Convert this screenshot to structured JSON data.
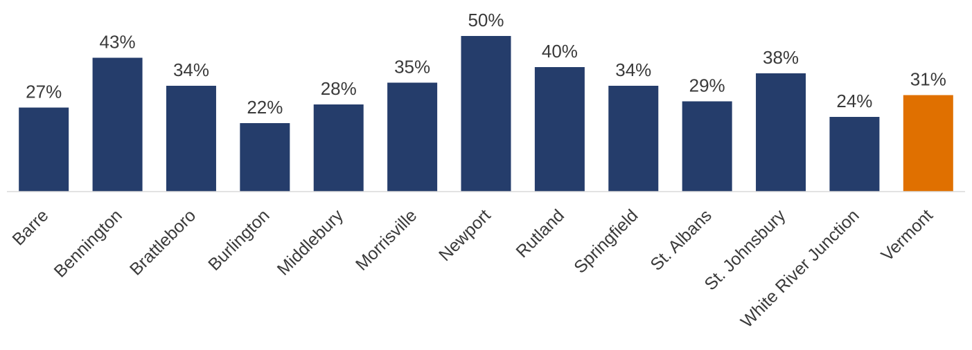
{
  "chart_data": {
    "type": "bar",
    "title": "",
    "xlabel": "",
    "ylabel": "",
    "ylim": [
      0,
      50
    ],
    "grid": false,
    "legend": "none",
    "categories": [
      "Barre",
      "Bennington",
      "Brattleboro",
      "Burlington",
      "Middlebury",
      "Morrisville",
      "Newport",
      "Rutland",
      "Springfield",
      "St. Albans",
      "St. Johnsbury",
      "White River Junction",
      "Vermont"
    ],
    "values": [
      27,
      43,
      34,
      22,
      28,
      35,
      50,
      40,
      34,
      29,
      38,
      24,
      31
    ],
    "labels": [
      "27%",
      "43%",
      "34%",
      "22%",
      "28%",
      "35%",
      "50%",
      "40%",
      "34%",
      "29%",
      "38%",
      "24%",
      "31%"
    ],
    "colors": {
      "default": "#253d6b",
      "highlight": "#e07000",
      "highlight_category": "Vermont"
    }
  }
}
